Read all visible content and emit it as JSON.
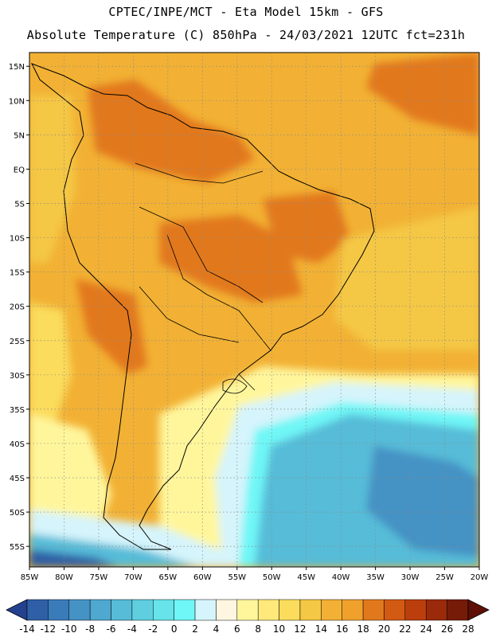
{
  "header": {
    "line1": "CPTEC/INPE/MCT -  Eta Model 15km - GFS",
    "line2": "Absolute Temperature (C) 850hPa - 24/03/2021 12UTC fct=231h"
  },
  "map": {
    "lat_labels": [
      "15N",
      "10N",
      "5N",
      "EQ",
      "5S",
      "10S",
      "15S",
      "20S",
      "25S",
      "30S",
      "35S",
      "40S",
      "45S",
      "50S",
      "55S"
    ],
    "lon_labels": [
      "85W",
      "80W",
      "75W",
      "70W",
      "65W",
      "60W",
      "55W",
      "50W",
      "45W",
      "40W",
      "35W",
      "30W",
      "25W",
      "20W"
    ],
    "lat_range": [
      17.0,
      -58.0
    ],
    "lon_range": [
      -85.0,
      -20.0
    ],
    "grid": true
  },
  "colorbar": {
    "labels": [
      "-14",
      "-12",
      "-10",
      "-8",
      "-6",
      "-4",
      "-2",
      "0",
      "2",
      "4",
      "6",
      "8",
      "10",
      "12",
      "14",
      "16",
      "18",
      "20",
      "22",
      "24",
      "26",
      "28"
    ],
    "colors": [
      "#24418f",
      "#2f5fa6",
      "#3a7bb9",
      "#4592c4",
      "#4ea8cf",
      "#56bcd8",
      "#5fcfe0",
      "#67e3ea",
      "#6ff6f6",
      "#d5f4fb",
      "#fff6e1",
      "#fff69c",
      "#ffe97a",
      "#fbdc5c",
      "#f4c744",
      "#f2b134",
      "#efa12c",
      "#e2781c",
      "#d35a12",
      "#bb3f0d",
      "#9a2a0a",
      "#761b08",
      "#5e1006"
    ]
  }
}
